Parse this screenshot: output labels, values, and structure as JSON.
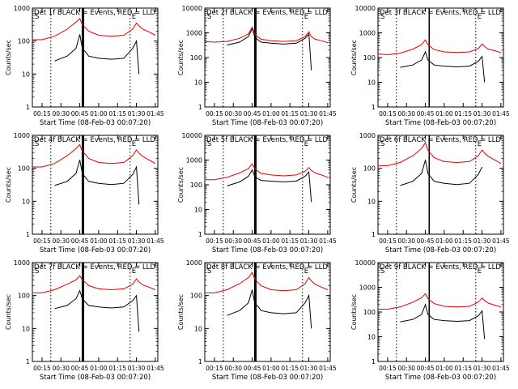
{
  "figure": {
    "x_tick_labels": [
      "00:15",
      "00:30",
      "00:45",
      "01:00",
      "01:15",
      "01:30",
      "01:45"
    ],
    "ylabel": "Counts/sec",
    "xlabel": "Start Time (08-Feb-03 00:07:20)",
    "colors": {
      "events": "#000000",
      "lld": "#e00000",
      "axes": "#000000"
    }
  },
  "chart_data": [
    {
      "type": "line",
      "title": "Det 1f BLACK = Events, RED = LLD",
      "ylabel": "Counts/sec",
      "xlabel": "Start Time (08-Feb-03 00:07:20)",
      "yscale": "log",
      "ylim": [
        1,
        1000
      ],
      "xlim": [
        "00:07:20",
        "01:47"
      ],
      "x_ticks": [
        "00:15",
        "00:30",
        "00:45",
        "01:00",
        "01:15",
        "01:30",
        "01:45"
      ],
      "y_tick_labels": [
        "1",
        "10",
        "100",
        "1000"
      ],
      "x": [
        "00:07",
        "00:15",
        "00:25",
        "00:35",
        "00:42",
        "00:45",
        "00:47",
        "00:50",
        "00:52",
        "01:00",
        "01:10",
        "01:20",
        "01:27",
        "01:30",
        "01:32",
        "01:35",
        "01:40",
        "01:45"
      ],
      "series": [
        {
          "name": "BLACK = Events",
          "values": [
            null,
            null,
            25,
            35,
            60,
            160,
            60,
            45,
            35,
            30,
            28,
            30,
            60,
            100,
            10,
            null,
            null,
            null
          ]
        },
        {
          "name": "RED = LLD",
          "values": [
            110,
            110,
            140,
            230,
            380,
            480,
            320,
            240,
            200,
            150,
            140,
            150,
            230,
            350,
            290,
            230,
            190,
            150
          ]
        }
      ],
      "vlines": [
        "00:22",
        "00:47",
        "00:48",
        "01:25"
      ],
      "markers": [
        "S",
        "E"
      ]
    },
    {
      "type": "line",
      "title": "Det 2f BLACK = Events, RED = LLD",
      "ylabel": "Counts/sec",
      "xlabel": "Start Time (08-Feb-03 00:07:20)",
      "yscale": "log",
      "ylim": [
        1,
        10000
      ],
      "xlim": [
        "00:07:20",
        "01:47"
      ],
      "x_ticks": [
        "00:15",
        "00:30",
        "00:45",
        "01:00",
        "01:15",
        "01:30",
        "01:45"
      ],
      "y_tick_labels": [
        "1",
        "10",
        "100",
        "1000",
        "10000"
      ],
      "x": [
        "00:07",
        "00:15",
        "00:25",
        "00:35",
        "00:42",
        "00:45",
        "00:47",
        "00:50",
        "00:52",
        "01:00",
        "01:10",
        "01:20",
        "01:27",
        "01:30",
        "01:32",
        "01:35",
        "01:40",
        "01:45"
      ],
      "series": [
        {
          "name": "BLACK = Events",
          "values": [
            null,
            null,
            320,
            420,
            700,
            1500,
            700,
            500,
            420,
            380,
            350,
            380,
            600,
            900,
            30,
            null,
            null,
            null
          ]
        },
        {
          "name": "RED = LLD",
          "values": [
            450,
            420,
            450,
            600,
            900,
            1700,
            900,
            650,
            550,
            480,
            450,
            480,
            700,
            1100,
            700,
            550,
            480,
            400
          ]
        }
      ],
      "vlines": [
        "00:22",
        "00:47",
        "00:48",
        "01:25"
      ],
      "markers": [
        "S",
        "E"
      ]
    },
    {
      "type": "line",
      "title": "Det 3f BLACK = Events, RED = LLD",
      "ylabel": "Counts/sec",
      "xlabel": "Start Time (08-Feb-03 00:07:20)",
      "yscale": "log",
      "ylim": [
        1,
        10000
      ],
      "xlim": [
        "00:07:20",
        "01:47"
      ],
      "x_ticks": [
        "00:15",
        "00:30",
        "00:45",
        "01:00",
        "01:15",
        "01:30",
        "01:45"
      ],
      "y_tick_labels": [
        "1",
        "10",
        "100",
        "1000",
        "10000"
      ],
      "x": [
        "00:07",
        "00:15",
        "00:25",
        "00:35",
        "00:42",
        "00:45",
        "00:47",
        "00:50",
        "00:52",
        "01:00",
        "01:10",
        "01:20",
        "01:27",
        "01:30",
        "01:32",
        "01:35",
        "01:40",
        "01:45"
      ],
      "series": [
        {
          "name": "BLACK = Events",
          "values": [
            null,
            null,
            40,
            50,
            80,
            170,
            80,
            60,
            50,
            45,
            42,
            45,
            70,
            110,
            10,
            null,
            null,
            null
          ]
        },
        {
          "name": "RED = LLD",
          "values": [
            140,
            130,
            150,
            220,
            330,
            520,
            330,
            250,
            210,
            170,
            160,
            170,
            230,
            350,
            280,
            220,
            190,
            160
          ]
        }
      ],
      "vlines": [
        "00:22",
        "00:48",
        "01:25"
      ],
      "markers": [
        "S",
        "E"
      ]
    },
    {
      "type": "line",
      "title": "Det 4f BLACK = Events, RED = LLD",
      "ylabel": "Counts/sec",
      "xlabel": "Start Time (08-Feb-03 00:07:20)",
      "yscale": "log",
      "ylim": [
        1,
        1000
      ],
      "xlim": [
        "00:07:20",
        "01:47"
      ],
      "x_ticks": [
        "00:15",
        "00:30",
        "00:45",
        "01:00",
        "01:15",
        "01:30",
        "01:45"
      ],
      "y_tick_labels": [
        "1",
        "10",
        "100",
        "1000"
      ],
      "x": [
        "00:07",
        "00:15",
        "00:25",
        "00:35",
        "00:42",
        "00:45",
        "00:47",
        "00:50",
        "00:52",
        "01:00",
        "01:10",
        "01:20",
        "01:27",
        "01:30",
        "01:32",
        "01:35",
        "01:40",
        "01:45"
      ],
      "series": [
        {
          "name": "BLACK = Events",
          "values": [
            null,
            null,
            30,
            40,
            70,
            180,
            70,
            50,
            40,
            35,
            32,
            35,
            65,
            110,
            8,
            null,
            null,
            null
          ]
        },
        {
          "name": "RED = LLD",
          "values": [
            110,
            110,
            140,
            240,
            400,
            520,
            330,
            250,
            200,
            150,
            140,
            150,
            240,
            360,
            290,
            230,
            180,
            140
          ]
        }
      ],
      "vlines": [
        "00:22",
        "00:47",
        "00:48",
        "01:25"
      ],
      "markers": [
        "S",
        "E"
      ]
    },
    {
      "type": "line",
      "title": "Det 5f BLACK = Events, RED = LLD",
      "ylabel": "Counts/sec",
      "xlabel": "Start Time (08-Feb-03 00:07:20)",
      "yscale": "log",
      "ylim": [
        1,
        10000
      ],
      "xlim": [
        "00:07:20",
        "01:47"
      ],
      "x_ticks": [
        "00:15",
        "00:30",
        "00:45",
        "01:00",
        "01:15",
        "01:30",
        "01:45"
      ],
      "y_tick_labels": [
        "1",
        "10",
        "100",
        "1000",
        "10000"
      ],
      "x": [
        "00:07",
        "00:15",
        "00:25",
        "00:35",
        "00:42",
        "00:45",
        "00:47",
        "00:50",
        "00:52",
        "01:00",
        "01:10",
        "01:20",
        "01:27",
        "01:30",
        "01:32",
        "01:35",
        "01:40",
        "01:45"
      ],
      "series": [
        {
          "name": "BLACK = Events",
          "values": [
            null,
            null,
            90,
            130,
            220,
            400,
            220,
            170,
            150,
            140,
            130,
            140,
            220,
            330,
            20,
            null,
            null,
            null
          ]
        },
        {
          "name": "RED = LLD",
          "values": [
            160,
            160,
            200,
            300,
            450,
            700,
            450,
            340,
            290,
            250,
            230,
            250,
            350,
            500,
            380,
            300,
            250,
            200
          ]
        }
      ],
      "vlines": [
        "00:22",
        "00:47",
        "00:48",
        "01:25"
      ],
      "markers": [
        "S",
        "E"
      ]
    },
    {
      "type": "line",
      "title": "Det 6f BLACK = Events, RED = LLD",
      "ylabel": "Counts/sec",
      "xlabel": "Start Time (08-Feb-03 00:07:20)",
      "yscale": "log",
      "ylim": [
        1,
        1000
      ],
      "xlim": [
        "00:07:20",
        "01:47"
      ],
      "x_ticks": [
        "00:15",
        "00:30",
        "00:45",
        "01:00",
        "01:15",
        "01:30",
        "01:45"
      ],
      "y_tick_labels": [
        "1",
        "10",
        "100",
        "1000"
      ],
      "x": [
        "00:07",
        "00:15",
        "00:25",
        "00:35",
        "00:42",
        "00:45",
        "00:47",
        "00:50",
        "00:52",
        "01:00",
        "01:10",
        "01:20",
        "01:27",
        "01:30",
        "01:32",
        "01:35",
        "01:40",
        "01:45"
      ],
      "series": [
        {
          "name": "BLACK = Events",
          "values": [
            null,
            null,
            30,
            40,
            70,
            180,
            70,
            50,
            40,
            35,
            32,
            35,
            65,
            110,
            null,
            null,
            null,
            null
          ]
        },
        {
          "name": "RED = LLD",
          "values": [
            120,
            120,
            150,
            240,
            400,
            600,
            350,
            260,
            210,
            160,
            150,
            160,
            240,
            360,
            290,
            230,
            180,
            140
          ]
        }
      ],
      "vlines": [
        "00:22",
        "00:48",
        "01:25"
      ],
      "markers": [
        "S",
        "E"
      ]
    },
    {
      "type": "line",
      "title": "Det 7f BLACK = Events, RED = LLD",
      "ylabel": "Counts/sec",
      "xlabel": "Start Time (08-Feb-03 00:07:20)",
      "yscale": "log",
      "ylim": [
        1,
        1000
      ],
      "xlim": [
        "00:07:20",
        "01:47"
      ],
      "x_ticks": [
        "00:15",
        "00:30",
        "00:45",
        "01:00",
        "01:15",
        "01:30",
        "01:45"
      ],
      "y_tick_labels": [
        "1",
        "10",
        "100",
        "1000"
      ],
      "x": [
        "00:07",
        "00:15",
        "00:25",
        "00:35",
        "00:42",
        "00:45",
        "00:47",
        "00:50",
        "00:52",
        "01:00",
        "01:10",
        "01:20",
        "01:27",
        "01:30",
        "01:32",
        "01:35",
        "01:40",
        "01:45"
      ],
      "series": [
        {
          "name": "BLACK = Events",
          "values": [
            null,
            null,
            40,
            50,
            80,
            140,
            80,
            60,
            50,
            45,
            42,
            45,
            70,
            100,
            8,
            null,
            null,
            null
          ]
        },
        {
          "name": "RED = LLD",
          "values": [
            120,
            120,
            150,
            220,
            300,
            400,
            300,
            240,
            200,
            160,
            150,
            160,
            220,
            320,
            260,
            210,
            180,
            150
          ]
        }
      ],
      "vlines": [
        "00:22",
        "00:47",
        "00:48",
        "01:25"
      ],
      "markers": [
        "S",
        "E"
      ]
    },
    {
      "type": "line",
      "title": "Det 8f BLACK = Events, RED = LLD",
      "ylabel": "Counts/sec",
      "xlabel": "Start Time (08-Feb-03 00:07:20)",
      "yscale": "log",
      "ylim": [
        1,
        1000
      ],
      "xlim": [
        "00:07:20",
        "01:47"
      ],
      "x_ticks": [
        "00:15",
        "00:30",
        "00:45",
        "01:00",
        "01:15",
        "01:30",
        "01:45"
      ],
      "y_tick_labels": [
        "1",
        "10",
        "100",
        "1000"
      ],
      "x": [
        "00:07",
        "00:15",
        "00:25",
        "00:35",
        "00:42",
        "00:45",
        "00:47",
        "00:50",
        "00:52",
        "01:00",
        "01:10",
        "01:20",
        "01:27",
        "01:30",
        "01:32",
        "01:35",
        "01:40",
        "01:45"
      ],
      "series": [
        {
          "name": "BLACK = Events",
          "values": [
            null,
            null,
            25,
            35,
            60,
            150,
            60,
            45,
            35,
            30,
            28,
            30,
            60,
            100,
            10,
            null,
            null,
            null
          ]
        },
        {
          "name": "RED = LLD",
          "values": [
            120,
            120,
            150,
            230,
            350,
            500,
            320,
            240,
            200,
            150,
            140,
            150,
            230,
            350,
            280,
            220,
            180,
            150
          ]
        }
      ],
      "vlines": [
        "00:22",
        "00:47",
        "00:48",
        "01:25"
      ],
      "markers": [
        "S",
        "E"
      ]
    },
    {
      "type": "line",
      "title": "Det 9f BLACK = Events, RED = LLD",
      "ylabel": "Counts/sec",
      "xlabel": "Start Time (08-Feb-03 00:07:20)",
      "yscale": "log",
      "ylim": [
        1,
        10000
      ],
      "xlim": [
        "00:07:20",
        "01:47"
      ],
      "x_ticks": [
        "00:15",
        "00:30",
        "00:45",
        "01:00",
        "01:15",
        "01:30",
        "01:45"
      ],
      "y_tick_labels": [
        "1",
        "10",
        "100",
        "1000",
        "10000"
      ],
      "x": [
        "00:07",
        "00:15",
        "00:25",
        "00:35",
        "00:42",
        "00:45",
        "00:47",
        "00:50",
        "00:52",
        "01:00",
        "01:10",
        "01:20",
        "01:27",
        "01:30",
        "01:32",
        "01:35",
        "01:40",
        "01:45"
      ],
      "series": [
        {
          "name": "BLACK = Events",
          "values": [
            null,
            null,
            40,
            50,
            80,
            200,
            80,
            60,
            50,
            45,
            42,
            45,
            70,
            110,
            8,
            null,
            null,
            null
          ]
        },
        {
          "name": "RED = LLD",
          "values": [
            130,
            130,
            160,
            250,
            380,
            550,
            350,
            260,
            220,
            170,
            160,
            170,
            250,
            370,
            290,
            230,
            190,
            160
          ]
        }
      ],
      "vlines": [
        "00:22",
        "00:48",
        "01:25"
      ],
      "markers": [
        "S",
        "E"
      ]
    }
  ]
}
